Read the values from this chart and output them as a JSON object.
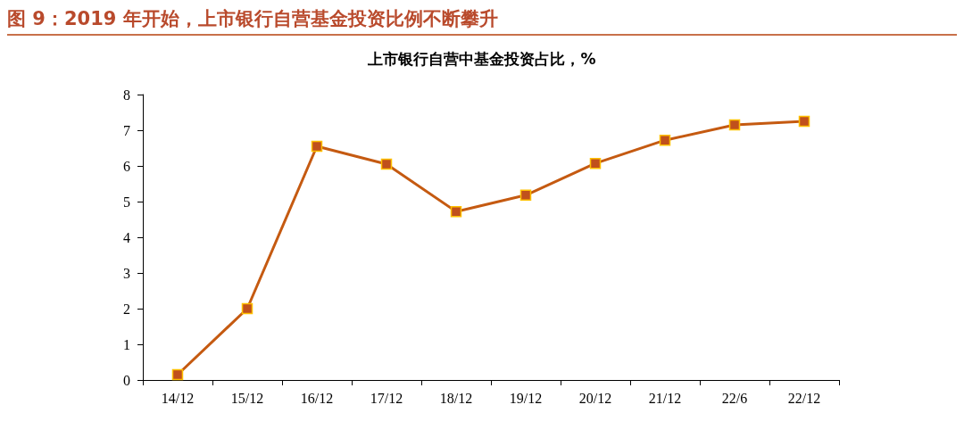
{
  "chart_data": {
    "type": "line",
    "title": "图 9：2019 年开始，上市银行自营基金投资比例不断攀升",
    "subtitle": "上市银行自营中基金投资占比，%",
    "categories": [
      "14/12",
      "15/12",
      "16/12",
      "17/12",
      "18/12",
      "19/12",
      "20/12",
      "21/12",
      "22/6",
      "22/12"
    ],
    "series": [
      {
        "color": "#c55a11",
        "values": [
          0.15,
          2.0,
          6.55,
          6.05,
          4.72,
          5.18,
          6.07,
          6.72,
          7.15,
          7.25
        ]
      }
    ],
    "ylim": [
      0,
      8
    ],
    "yticks": [
      0,
      1,
      2,
      3,
      4,
      5,
      6,
      7,
      8
    ],
    "grid": false,
    "marker": "square",
    "line_style": "solid"
  }
}
